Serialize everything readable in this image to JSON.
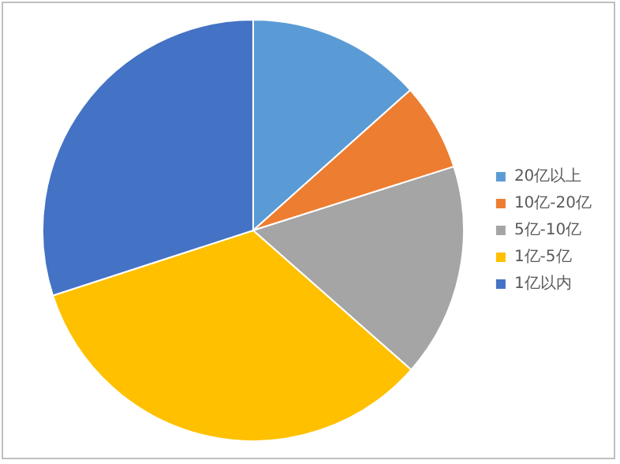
{
  "chart_data": {
    "type": "pie",
    "categories": [
      "20亿以上",
      "10亿-20亿",
      "5亿-10亿",
      "1亿-5亿",
      "1亿以内"
    ],
    "values": [
      13.4,
      6.7,
      16.4,
      33.5,
      30
    ],
    "colors": [
      "#5b9bd5",
      "#ed7d31",
      "#a5a5a5",
      "#ffc000",
      "#4472c4"
    ],
    "legend": "right"
  }
}
